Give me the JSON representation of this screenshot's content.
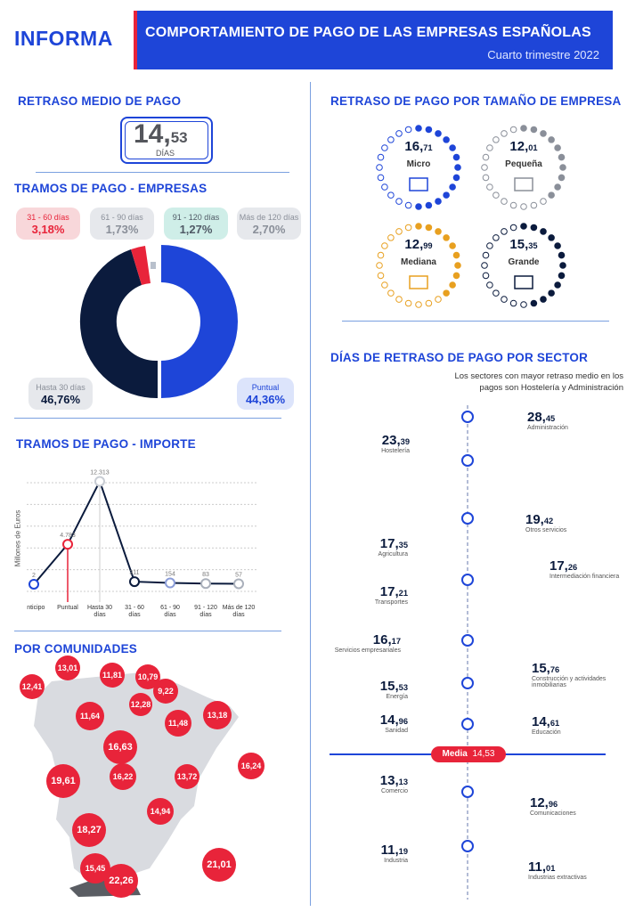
{
  "header": {
    "logo": "INFORMA",
    "title": "COMPORTAMIENTO DE PAGO DE LAS EMPRESAS ESPAÑOLAS",
    "subtitle": "Cuarto trimestre 2022"
  },
  "avg": {
    "title": "RETRASO MEDIO DE PAGO",
    "int": "14,",
    "dec": "53",
    "unit": "DÍAS"
  },
  "tramos_empresas": {
    "title": "TRAMOS DE PAGO - EMPRESAS",
    "pills": [
      {
        "label": "31 - 60 días",
        "value": "3,18%"
      },
      {
        "label": "61 - 90 días",
        "value": "1,73%"
      },
      {
        "label": "91 - 120 días",
        "value": "1,27%"
      },
      {
        "label": "Más de 120 días",
        "value": "2,70%"
      }
    ],
    "hasta30": {
      "label": "Hasta 30 días",
      "value": "46,76%"
    },
    "puntual": {
      "label": "Puntual",
      "value": "44,36%"
    }
  },
  "chart_data": {
    "type": "line",
    "title": "TRAMOS DE PAGO - IMPORTE",
    "ylabel": "Millones de Euros",
    "categories": [
      "Anticipo",
      "Puntual",
      "Hasta 30 días",
      "31 - 60 días",
      "61 - 90 días",
      "91 - 120 días",
      "Más de 120 días"
    ],
    "values": [
      2,
      4783,
      12313,
      311,
      154,
      83,
      57
    ],
    "value_labels": [
      "2",
      "4.783",
      "12.313",
      "311",
      "154",
      "83",
      "57"
    ],
    "ylim": [
      0,
      13000
    ],
    "grid": true
  },
  "tamano": {
    "title": "RETRASO DE PAGO POR TAMAÑO DE EMPRESA",
    "items": [
      {
        "int": "16,",
        "dec": "71",
        "label": "Micro",
        "color": "#1e45d8"
      },
      {
        "int": "12,",
        "dec": "01",
        "label": "Pequeña",
        "color": "#8a8f99"
      },
      {
        "int": "12,",
        "dec": "99",
        "label": "Mediana",
        "color": "#e8a020"
      },
      {
        "int": "15,",
        "dec": "35",
        "label": "Grande",
        "color": "#0b1b3d"
      }
    ]
  },
  "sector": {
    "title": "DÍAS DE RETRASO DE PAGO POR SECTOR",
    "intro": "Los sectores con mayor retraso medio en los  pagos son Hostelería y Administración",
    "items": [
      {
        "int": "28,",
        "dec": "45",
        "label": "Administración"
      },
      {
        "int": "23,",
        "dec": "39",
        "label": "Hostelería"
      },
      {
        "int": "19,",
        "dec": "42",
        "label": "Otros servicios"
      },
      {
        "int": "17,",
        "dec": "35",
        "label": "Agricultura"
      },
      {
        "int": "17,",
        "dec": "26",
        "label": "Intermediación financiera"
      },
      {
        "int": "17,",
        "dec": "21",
        "label": "Transportes"
      },
      {
        "int": "16,",
        "dec": "17",
        "label": "Servicios empresariales"
      },
      {
        "int": "15,",
        "dec": "76",
        "label": "Construcción y actividades inmobiliarias"
      },
      {
        "int": "15,",
        "dec": "53",
        "label": "Energía"
      },
      {
        "int": "14,",
        "dec": "96",
        "label": "Sanidad"
      },
      {
        "int": "14,",
        "dec": "61",
        "label": "Educación"
      },
      {
        "int": "13,",
        "dec": "13",
        "label": "Comercio"
      },
      {
        "int": "12,",
        "dec": "96",
        "label": "Comunicaciones"
      },
      {
        "int": "11,",
        "dec": "19",
        "label": "Industria"
      },
      {
        "int": "11,",
        "dec": "01",
        "label": "Industrias extractivas"
      }
    ],
    "media_label": "Media",
    "media_value": "14,53"
  },
  "comunidades": {
    "title": "POR COMUNIDADES",
    "values": [
      "12,41",
      "13,01",
      "11,81",
      "10,79",
      "9,22",
      "12,28",
      "11,64",
      "11,48",
      "13,18",
      "16,63",
      "16,22",
      "13,72",
      "16,24",
      "19,61",
      "14,94",
      "18,27",
      "15,45",
      "22,26",
      "21,01"
    ]
  },
  "colors": {
    "blue": "#1e45d8",
    "red": "#e8243a",
    "navy": "#0b1b3d",
    "gray": "#8a8f99",
    "orange": "#e8a020"
  }
}
